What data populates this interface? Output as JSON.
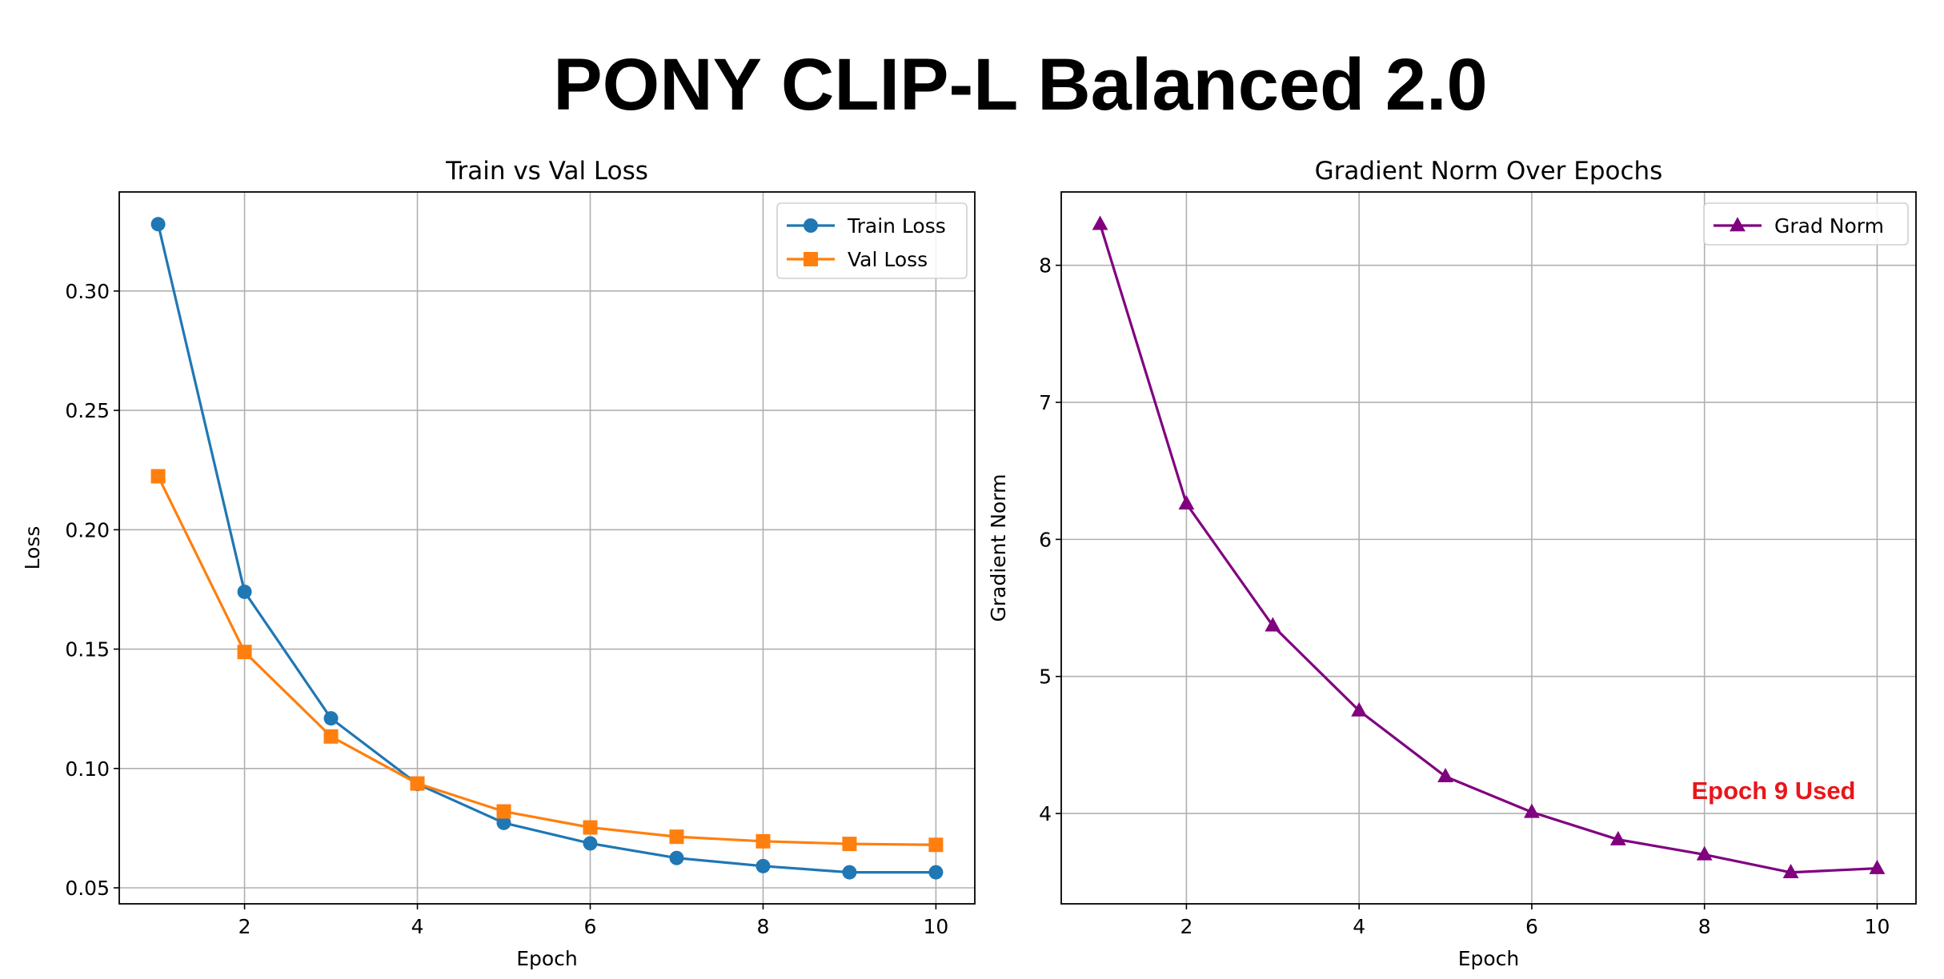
{
  "figure_title": "PONY CLIP-L Balanced 2.0",
  "chart_data": [
    {
      "type": "line",
      "title": "Train vs Val Loss",
      "xlabel": "Epoch",
      "ylabel": "Loss",
      "xlim": [
        0.55,
        10.45
      ],
      "ylim": [
        0.0433,
        0.3415
      ],
      "xticks": [
        2,
        4,
        6,
        8,
        10
      ],
      "xtick_labels": [
        "2",
        "4",
        "6",
        "8",
        "10"
      ],
      "yticks": [
        0.05,
        0.1,
        0.15,
        0.2,
        0.25,
        0.3
      ],
      "ytick_labels": [
        "0.05",
        "0.10",
        "0.15",
        "0.20",
        "0.25",
        "0.30"
      ],
      "grid": true,
      "legend_position": "top-right",
      "x": [
        1,
        2,
        3,
        4,
        5,
        6,
        7,
        8,
        9,
        10
      ],
      "series": [
        {
          "name": "Train Loss",
          "color": "#1f77b4",
          "marker": "circle",
          "values": [
            0.328,
            0.174,
            0.121,
            0.0935,
            0.0772,
            0.0686,
            0.0625,
            0.0591,
            0.0565,
            0.0565
          ]
        },
        {
          "name": "Val Loss",
          "color": "#ff7f0e",
          "marker": "square",
          "values": [
            0.2224,
            0.1488,
            0.1134,
            0.0937,
            0.082,
            0.0753,
            0.0714,
            0.0695,
            0.0684,
            0.068
          ]
        }
      ]
    },
    {
      "type": "line",
      "title": "Gradient Norm Over Epochs",
      "xlabel": "Epoch",
      "ylabel": "Gradient Norm",
      "xlim": [
        0.55,
        10.45
      ],
      "ylim": [
        3.341,
        8.535
      ],
      "xticks": [
        2,
        4,
        6,
        8,
        10
      ],
      "xtick_labels": [
        "2",
        "4",
        "6",
        "8",
        "10"
      ],
      "yticks": [
        4,
        5,
        6,
        7,
        8
      ],
      "ytick_labels": [
        "4",
        "5",
        "6",
        "7",
        "8"
      ],
      "grid": true,
      "legend_position": "top-right",
      "x": [
        1,
        2,
        3,
        4,
        5,
        6,
        7,
        8,
        9,
        10
      ],
      "series": [
        {
          "name": "Grad Norm",
          "color": "#800080",
          "marker": "triangle",
          "values": [
            8.3,
            6.26,
            5.37,
            4.75,
            4.27,
            4.01,
            3.81,
            3.7,
            3.57,
            3.6
          ]
        }
      ],
      "annotation": {
        "text": "Epoch 9 Used",
        "x": 8.8,
        "y": 4.17,
        "color": "#e8171b"
      }
    }
  ]
}
